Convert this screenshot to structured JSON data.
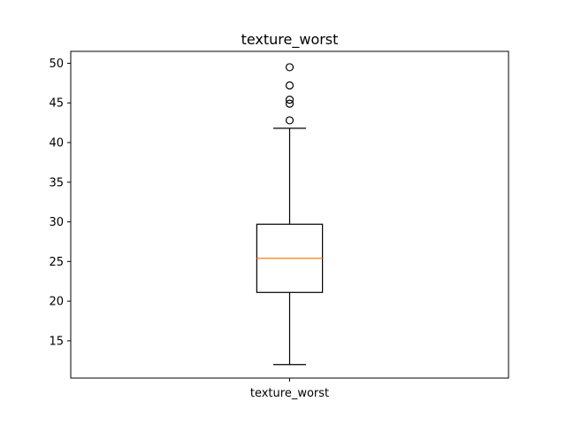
{
  "chart_data": {
    "type": "box",
    "title": "texture_worst",
    "xlabel": "",
    "ylabel": "",
    "categories": [
      "texture_worst"
    ],
    "ylim": [
      10.3,
      51.5
    ],
    "yticks": [
      15,
      20,
      25,
      30,
      35,
      40,
      45,
      50
    ],
    "grid": false,
    "series": [
      {
        "category": "texture_worst",
        "whisker_low": 12.0,
        "q1": 21.1,
        "median": 25.4,
        "q3": 29.7,
        "whisker_high": 41.8,
        "outliers": [
          42.8,
          44.9,
          45.4,
          47.2,
          49.5
        ]
      }
    ],
    "colors": {
      "box": "#000000",
      "median": "#ff7f0e",
      "outlier_edge": "#000000"
    }
  }
}
